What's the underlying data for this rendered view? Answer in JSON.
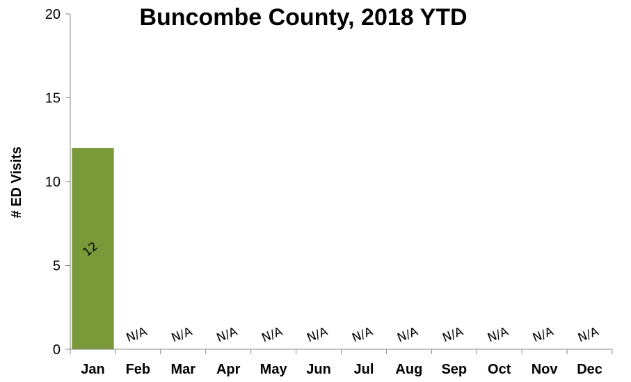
{
  "chart_data": {
    "type": "bar",
    "title": "Buncombe County, 2018 YTD",
    "xlabel": "",
    "ylabel": "# ED Visits",
    "ylim": [
      0,
      20
    ],
    "yticks": [
      0,
      5,
      10,
      15,
      20
    ],
    "categories": [
      "Jan",
      "Feb",
      "Mar",
      "Apr",
      "May",
      "Jun",
      "Jul",
      "Aug",
      "Sep",
      "Oct",
      "Nov",
      "Dec"
    ],
    "values": [
      12,
      null,
      null,
      null,
      null,
      null,
      null,
      null,
      null,
      null,
      null,
      null
    ],
    "data_labels": [
      "12",
      "N/A",
      "N/A",
      "N/A",
      "N/A",
      "N/A",
      "N/A",
      "N/A",
      "N/A",
      "N/A",
      "N/A",
      "N/A"
    ],
    "bar_color": "#7A9A3A",
    "grid": false,
    "legend": "none"
  }
}
